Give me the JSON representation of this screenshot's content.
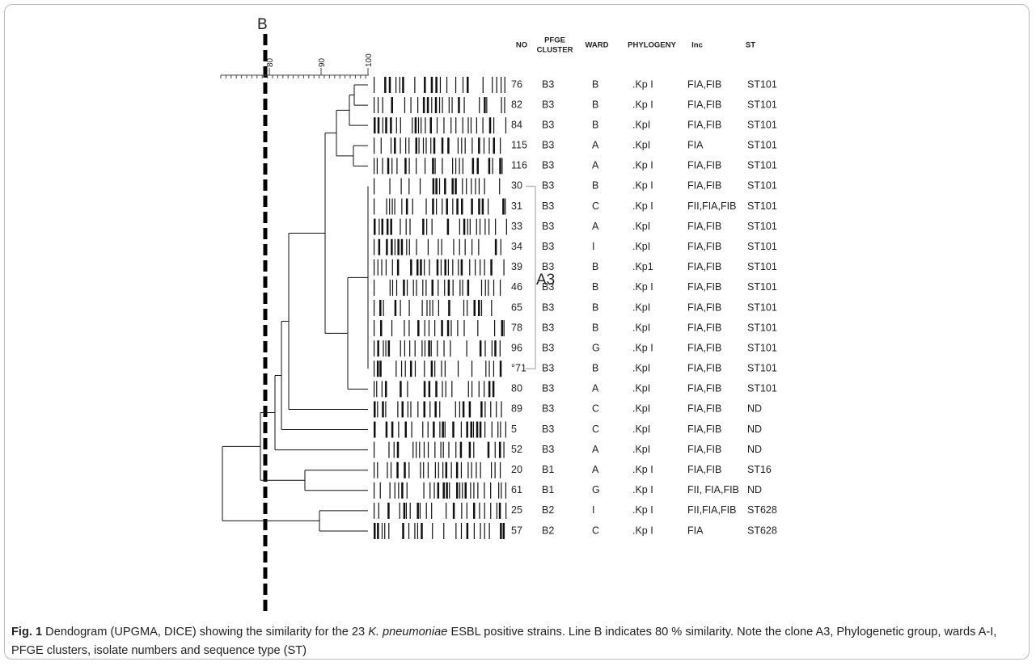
{
  "figure": {
    "line_label": "B",
    "axis_ticks": [
      "80",
      "90",
      "100"
    ],
    "clone_label": "A3",
    "headers": {
      "no": "NO",
      "pfge": [
        "PFGE",
        "CLUSTER"
      ],
      "ward": "WARD",
      "phylogeny": "PHYLOGENY",
      "inc": "Inc",
      "st": "ST"
    },
    "rows": [
      [
        "76",
        "B3",
        "B",
        ".Kp I",
        "FIA,FIB",
        "ST101"
      ],
      [
        "82",
        "B3",
        "B",
        ".Kp I",
        "FIA,FIB",
        "ST101"
      ],
      [
        "84",
        "B3",
        "B",
        ".KpI",
        "FIA,FIB",
        "ST101"
      ],
      [
        "115",
        "B3",
        "A",
        ".KpI",
        "FIA",
        "ST101"
      ],
      [
        "116",
        "B3",
        "A",
        ".Kp I",
        "FIA,FIB",
        "ST101"
      ],
      [
        "30",
        "B3",
        "B",
        ".Kp I",
        "FIA,FIB",
        "ST101"
      ],
      [
        "31",
        "B3",
        "C",
        ".Kp I",
        "FII,FIA,FIB",
        "ST101"
      ],
      [
        "33",
        "B3",
        "A",
        ".KpI",
        "FIA,FIB",
        "ST101"
      ],
      [
        "34",
        "B3",
        "I",
        ".KpI",
        "FIA,FIB",
        "ST101"
      ],
      [
        "39",
        "B3",
        "B",
        ".Kp1",
        "FIA,FIB",
        "ST101"
      ],
      [
        "46",
        "B3",
        "B",
        ".Kp I",
        "FIA,FIB",
        "ST101"
      ],
      [
        "65",
        "B3",
        "B",
        ".KpI",
        "FIA,FIB",
        "ST101"
      ],
      [
        "78",
        "B3",
        "B",
        ".KpI",
        "FIA,FIB",
        "ST101"
      ],
      [
        "96",
        "B3",
        "G",
        ".Kp I",
        "FIA,FIB",
        "ST101"
      ],
      [
        "°71",
        "B3",
        "B",
        ".KpI",
        "FIA,FIB",
        "ST101"
      ],
      [
        "80",
        "B3",
        "A",
        ".KpI",
        "FIA,FIB",
        "ST101"
      ],
      [
        "89",
        "B3",
        "C",
        ".KpI",
        "FIA,FIB",
        "ND"
      ],
      [
        "5",
        "B3",
        "C",
        ".KpI",
        "FIA,FIB",
        "ND"
      ],
      [
        "52",
        "B3",
        "A",
        ".KpI",
        "FIA,FIB",
        "ND"
      ],
      [
        "20",
        "B1",
        "A",
        ".Kp I",
        "FIA,FIB",
        "ST16"
      ],
      [
        "61",
        "B1",
        "G",
        ".Kp I",
        "FII, FIA,FIB",
        "ND"
      ],
      [
        "25",
        "B2",
        "I",
        ".Kp I",
        "FII,FIA,FIB",
        "ST628"
      ],
      [
        "57",
        "B2",
        "C",
        ".Kp I",
        "FIA",
        "ST628"
      ]
    ]
  },
  "caption": {
    "label": "Fig. 1",
    "text_before": "Dendogram (UPGMA, DICE) showing the similarity for the 23",
    "species": "K. pneumoniae",
    "text_after": "ESBL positive strains. Line B indicates 80 % similarity. Note the clone A3, Phylogenetic group, wards A-I, PFGE clusters, isolate numbers and sequence type (ST)"
  }
}
